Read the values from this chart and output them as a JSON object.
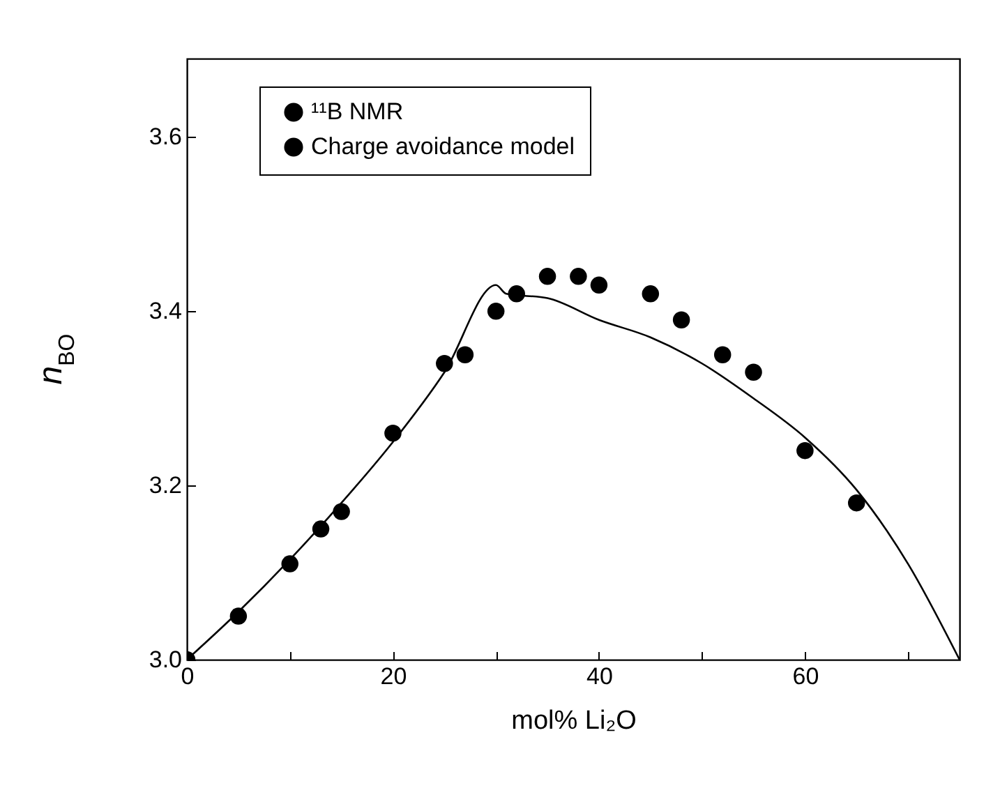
{
  "chart_data": {
    "type": "scatter",
    "xlabel": "mol% Li₂O",
    "ylabel": "n$_{BO}$",
    "xlim": [
      0,
      75
    ],
    "ylim": [
      3.0,
      3.69
    ],
    "xticks": [
      0,
      {
        "value": 10,
        "label": null
      },
      20,
      {
        "value": 30,
        "label": null
      },
      40,
      {
        "value": 50,
        "label": null
      },
      60,
      {
        "value": 70,
        "label": null
      }
    ],
    "yticks": [
      {
        "value": 3.0,
        "label": "3.0"
      },
      3.2,
      3.4,
      3.6
    ],
    "grid": false,
    "legend": "top left",
    "series": [
      {
        "name": "¹¹B NMR",
        "marker": "circle",
        "color": "#000000",
        "x": [
          0,
          5,
          10,
          13,
          15,
          20,
          25,
          27,
          30,
          32,
          35,
          38,
          40,
          45,
          48,
          52,
          55,
          60,
          65
        ],
        "values": [
          3.0,
          3.05,
          3.11,
          3.15,
          3.17,
          3.26,
          3.34,
          3.35,
          3.4,
          3.42,
          3.44,
          3.44,
          3.43,
          3.42,
          3.39,
          3.35,
          3.33,
          3.24,
          3.18
        ]
      },
      {
        "name": "Charge avoidance model",
        "type": "line",
        "color": "#000000",
        "x": [
          0,
          5,
          10,
          15,
          20,
          25,
          30,
          31,
          35,
          40,
          45,
          50,
          55,
          60,
          65,
          70,
          75
        ],
        "values": [
          3.0,
          3.055,
          3.115,
          3.18,
          3.25,
          3.33,
          3.43,
          3.42,
          3.415,
          3.39,
          3.37,
          3.34,
          3.3,
          3.255,
          3.195,
          3.11,
          3.0
        ]
      }
    ]
  }
}
